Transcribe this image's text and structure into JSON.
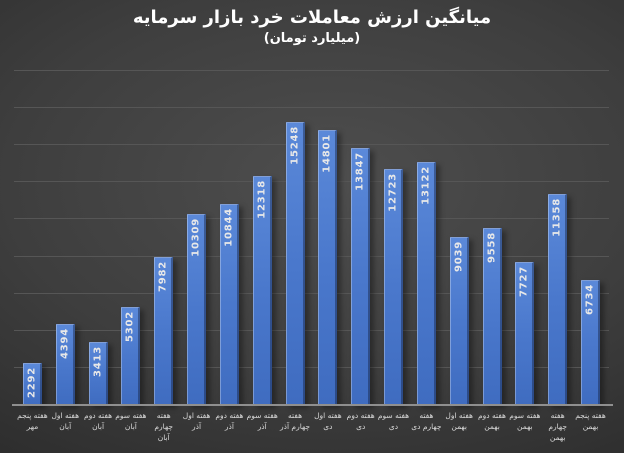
{
  "chart_data": {
    "type": "bar",
    "title": "میانگین ارزش معاملات خرد بازار سرمایه",
    "subtitle": "(میلیارد تومان)",
    "categories": [
      "هفته پنجم\nمهر",
      "هفته اول\nآبان",
      "هفته دوم\nآبان",
      "هفته سوم\nآبان",
      "هفته\nچهارم آبان",
      "هفته اول\nآذر",
      "هفته دوم\nآذر",
      "هفته سوم\nآذر",
      "هفته\nچهارم آذر",
      "هفته اول\nدی",
      "هفته دوم\nدی",
      "هفته سوم\nدی",
      "هفته\nچهارم دی",
      "هفته اول\nبهمن",
      "هفته دوم\nبهمن",
      "هفته سوم\nبهمن",
      "هفته\nچهارم\nبهمن",
      "هفته پنجم\nبهمن"
    ],
    "values": [
      2292,
      4394,
      3413,
      5302,
      7982,
      10309,
      10844,
      12318,
      15248,
      14801,
      13847,
      12723,
      13122,
      9039,
      9558,
      7727,
      11358,
      6734
    ],
    "xlabel": "",
    "ylabel": "",
    "ylim": [
      0,
      18000
    ],
    "gridline_step": 2000,
    "grid": true,
    "legend": "none",
    "value_label_style": "inside-end-vertical",
    "colors": {
      "bar": "#4a78cc",
      "bar_top": "#5b89d9",
      "bar_bottom": "#3f6cc0",
      "value_label": "#e8e8e8",
      "category_label": "#d9d9d9",
      "title": "#ffffff",
      "gridline": "#565656",
      "axis_line": "#8f8f8f",
      "background_center": "#4e4e4e",
      "background_edge": "#232323"
    }
  }
}
